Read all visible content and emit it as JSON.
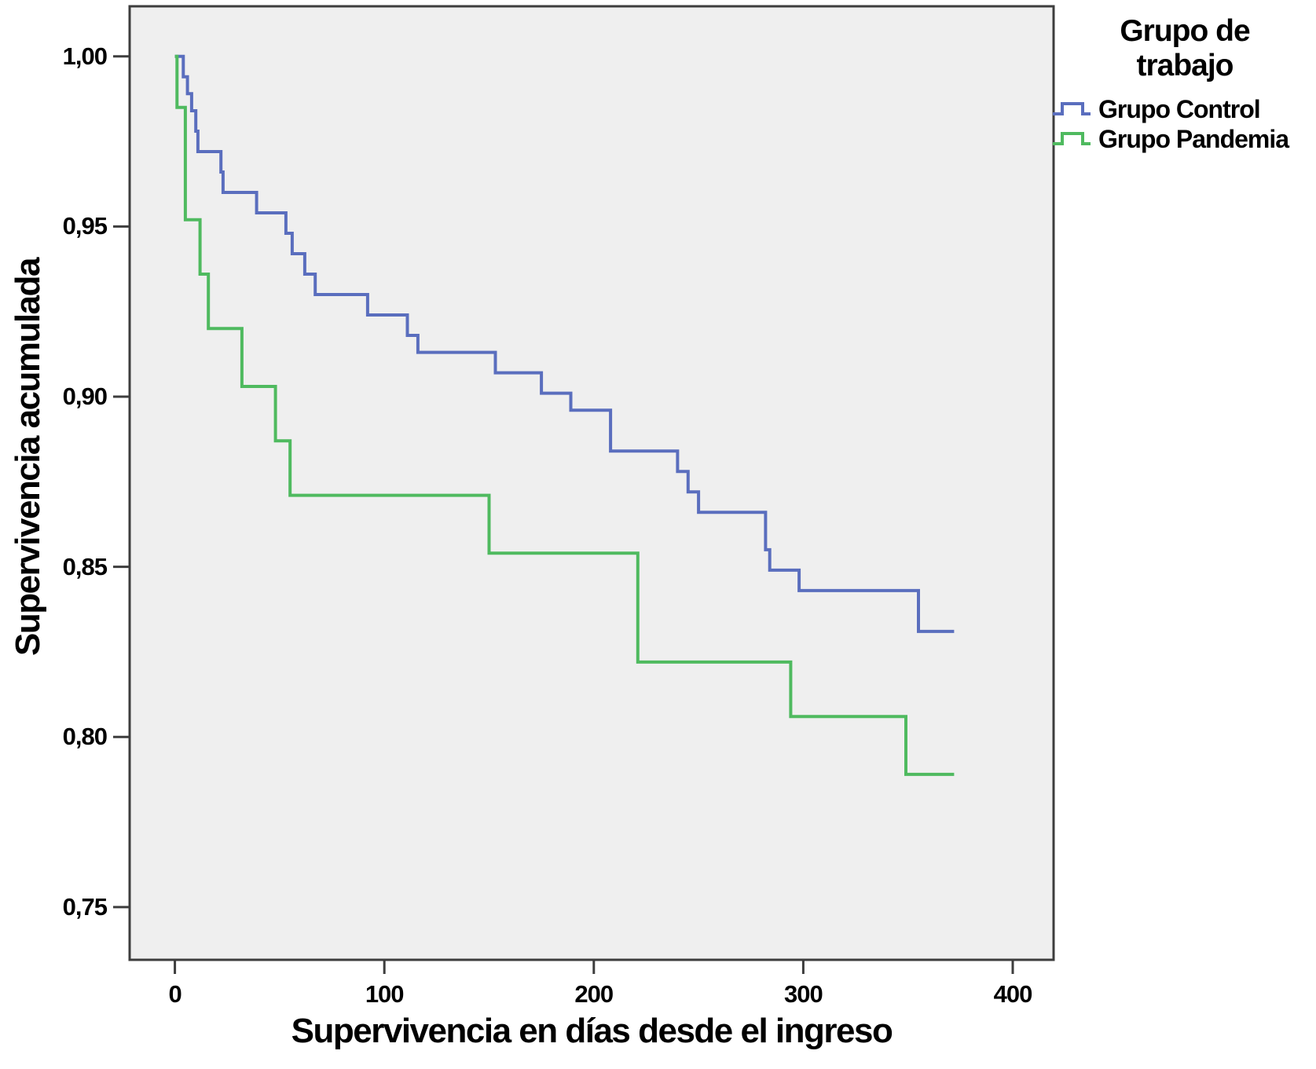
{
  "chart_data": {
    "type": "line",
    "subtype": "kaplan-meier-step",
    "title": "",
    "xlabel": "Supervivencia en días desde el ingreso",
    "ylabel": "Supervivencia acumulada",
    "xlim": [
      -21.6,
      419.5
    ],
    "ylim": [
      0.7345,
      1.0147
    ],
    "grid": false,
    "plot_background": "#efefef",
    "frame_color": "#3d3d3d",
    "x_ticks": [
      {
        "value": 0,
        "label": "0"
      },
      {
        "value": 100,
        "label": "100"
      },
      {
        "value": 200,
        "label": "200"
      },
      {
        "value": 300,
        "label": "300"
      },
      {
        "value": 400,
        "label": "400"
      }
    ],
    "y_ticks": [
      {
        "value": 1.0,
        "label": "1,00"
      },
      {
        "value": 0.95,
        "label": "0,95"
      },
      {
        "value": 0.9,
        "label": "0,90"
      },
      {
        "value": 0.85,
        "label": "0,85"
      },
      {
        "value": 0.8,
        "label": "0,80"
      },
      {
        "value": 0.75,
        "label": "0,75"
      }
    ],
    "legend": {
      "title_lines": [
        "Grupo de",
        "trabajo"
      ],
      "position": "top-right-outside"
    },
    "series": [
      {
        "name": "Grupo Control",
        "color": "#5a6ebe",
        "points": [
          [
            0,
            1.0
          ],
          [
            4,
            0.994
          ],
          [
            6,
            0.989
          ],
          [
            8,
            0.984
          ],
          [
            10,
            0.978
          ],
          [
            11,
            0.972
          ],
          [
            22,
            0.966
          ],
          [
            23,
            0.96
          ],
          [
            39,
            0.954
          ],
          [
            53,
            0.948
          ],
          [
            56,
            0.942
          ],
          [
            62,
            0.936
          ],
          [
            67,
            0.93
          ],
          [
            92,
            0.924
          ],
          [
            111,
            0.918
          ],
          [
            116,
            0.913
          ],
          [
            153,
            0.907
          ],
          [
            175,
            0.901
          ],
          [
            189,
            0.896
          ],
          [
            208,
            0.884
          ],
          [
            240,
            0.878
          ],
          [
            245,
            0.872
          ],
          [
            250,
            0.866
          ],
          [
            282,
            0.855
          ],
          [
            284,
            0.849
          ],
          [
            298,
            0.843
          ],
          [
            355,
            0.831
          ],
          [
            372,
            0.831
          ]
        ]
      },
      {
        "name": "Grupo Pandemia",
        "color": "#4fba5f",
        "points": [
          [
            0,
            1.0
          ],
          [
            1,
            0.985
          ],
          [
            5,
            0.952
          ],
          [
            12,
            0.936
          ],
          [
            16,
            0.92
          ],
          [
            32,
            0.903
          ],
          [
            48,
            0.887
          ],
          [
            55,
            0.871
          ],
          [
            150,
            0.854
          ],
          [
            221,
            0.822
          ],
          [
            294,
            0.806
          ],
          [
            349,
            0.789
          ],
          [
            372,
            0.789
          ]
        ]
      }
    ]
  }
}
